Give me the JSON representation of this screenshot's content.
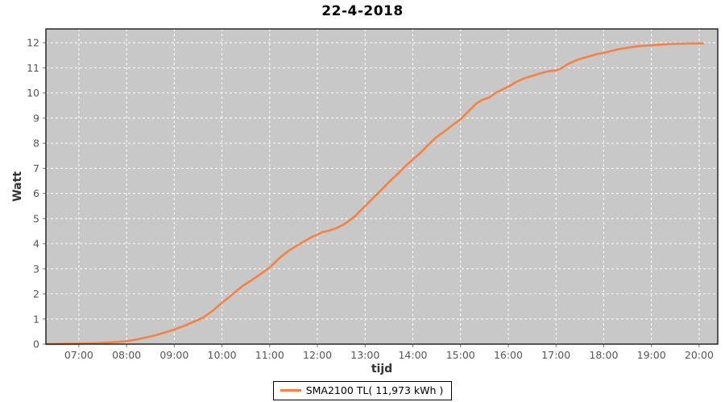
{
  "title": "22-4-2018",
  "legend": {
    "series_label": "SMA2100 TL( 11,973 kWh )"
  },
  "chart_data": {
    "type": "line",
    "title": "22-4-2018",
    "xlabel": "tijd",
    "ylabel": "Watt",
    "x_domain": [
      6.31,
      20.39
    ],
    "y_domain": [
      0,
      12.55
    ],
    "grid": true,
    "legend_position": "bottom-center",
    "x_ticks": [
      {
        "value": 7,
        "label": "07:00"
      },
      {
        "value": 8,
        "label": "08:00"
      },
      {
        "value": 9,
        "label": "09:00"
      },
      {
        "value": 10,
        "label": "10:00"
      },
      {
        "value": 11,
        "label": "11:00"
      },
      {
        "value": 12,
        "label": "12:00"
      },
      {
        "value": 13,
        "label": "13:00"
      },
      {
        "value": 14,
        "label": "14:00"
      },
      {
        "value": 15,
        "label": "15:00"
      },
      {
        "value": 16,
        "label": "16:00"
      },
      {
        "value": 17,
        "label": "17:00"
      },
      {
        "value": 18,
        "label": "18:00"
      },
      {
        "value": 19,
        "label": "19:00"
      },
      {
        "value": 20,
        "label": "20:00"
      }
    ],
    "y_ticks": [
      {
        "value": 0,
        "label": "0"
      },
      {
        "value": 1,
        "label": "1"
      },
      {
        "value": 2,
        "label": "2"
      },
      {
        "value": 3,
        "label": "3"
      },
      {
        "value": 4,
        "label": "4"
      },
      {
        "value": 5,
        "label": "5"
      },
      {
        "value": 6,
        "label": "6"
      },
      {
        "value": 7,
        "label": "7"
      },
      {
        "value": 8,
        "label": "8"
      },
      {
        "value": 9,
        "label": "9"
      },
      {
        "value": 10,
        "label": "10"
      },
      {
        "value": 11,
        "label": "11"
      },
      {
        "value": 12,
        "label": "12"
      }
    ],
    "colors": {
      "plot_bg": "#C8C8C8",
      "grid": "#FFFFFF",
      "line": "#F58142",
      "tick_label": "#555555",
      "axis_label": "#333333",
      "title": "#000000",
      "plot_border": "#1A1A1A",
      "tick_mark": "#7A7A7A"
    },
    "series": [
      {
        "name": "SMA2100 TL( 11,973 kWh )",
        "points": [
          [
            6.33,
            0.0
          ],
          [
            6.6,
            0.01
          ],
          [
            7.0,
            0.02
          ],
          [
            7.4,
            0.04
          ],
          [
            7.75,
            0.08
          ],
          [
            8.0,
            0.12
          ],
          [
            8.2,
            0.18
          ],
          [
            8.4,
            0.26
          ],
          [
            8.6,
            0.35
          ],
          [
            8.8,
            0.46
          ],
          [
            9.0,
            0.58
          ],
          [
            9.2,
            0.72
          ],
          [
            9.4,
            0.88
          ],
          [
            9.6,
            1.05
          ],
          [
            9.8,
            1.32
          ],
          [
            10.0,
            1.65
          ],
          [
            10.2,
            1.95
          ],
          [
            10.42,
            2.3
          ],
          [
            10.6,
            2.52
          ],
          [
            10.8,
            2.78
          ],
          [
            11.0,
            3.05
          ],
          [
            11.2,
            3.42
          ],
          [
            11.4,
            3.72
          ],
          [
            11.55,
            3.9
          ],
          [
            11.75,
            4.12
          ],
          [
            11.9,
            4.28
          ],
          [
            12.0,
            4.36
          ],
          [
            12.1,
            4.46
          ],
          [
            12.25,
            4.52
          ],
          [
            12.4,
            4.62
          ],
          [
            12.55,
            4.76
          ],
          [
            12.67,
            4.92
          ],
          [
            12.78,
            5.08
          ],
          [
            13.0,
            5.5
          ],
          [
            13.17,
            5.82
          ],
          [
            13.33,
            6.12
          ],
          [
            13.5,
            6.45
          ],
          [
            13.67,
            6.76
          ],
          [
            13.83,
            7.06
          ],
          [
            14.0,
            7.35
          ],
          [
            14.17,
            7.64
          ],
          [
            14.33,
            7.95
          ],
          [
            14.5,
            8.25
          ],
          [
            14.67,
            8.48
          ],
          [
            14.83,
            8.72
          ],
          [
            15.0,
            8.95
          ],
          [
            15.17,
            9.28
          ],
          [
            15.33,
            9.58
          ],
          [
            15.45,
            9.72
          ],
          [
            15.6,
            9.82
          ],
          [
            15.75,
            10.02
          ],
          [
            15.9,
            10.16
          ],
          [
            16.0,
            10.25
          ],
          [
            16.17,
            10.44
          ],
          [
            16.33,
            10.58
          ],
          [
            16.5,
            10.68
          ],
          [
            16.67,
            10.78
          ],
          [
            16.83,
            10.86
          ],
          [
            17.0,
            10.9
          ],
          [
            17.1,
            10.97
          ],
          [
            17.25,
            11.15
          ],
          [
            17.4,
            11.28
          ],
          [
            17.55,
            11.38
          ],
          [
            17.7,
            11.46
          ],
          [
            17.85,
            11.54
          ],
          [
            18.0,
            11.6
          ],
          [
            18.17,
            11.68
          ],
          [
            18.33,
            11.75
          ],
          [
            18.5,
            11.8
          ],
          [
            18.67,
            11.85
          ],
          [
            18.83,
            11.88
          ],
          [
            19.0,
            11.9
          ],
          [
            19.2,
            11.93
          ],
          [
            19.4,
            11.95
          ],
          [
            19.6,
            11.96
          ],
          [
            19.8,
            11.97
          ],
          [
            20.0,
            11.97
          ],
          [
            20.08,
            11.97
          ]
        ]
      }
    ]
  }
}
